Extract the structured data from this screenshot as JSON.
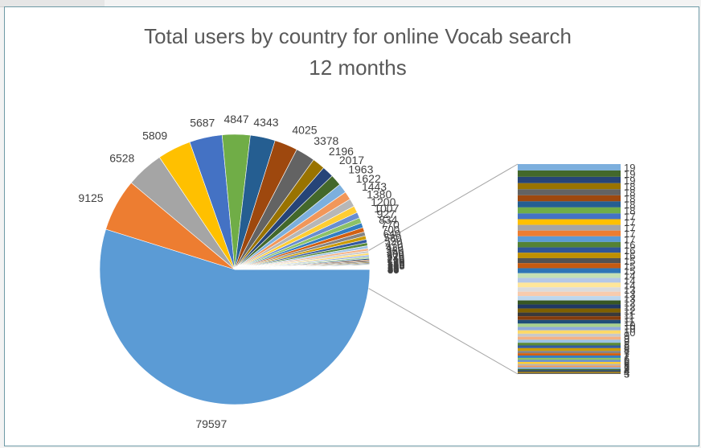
{
  "chart_data": {
    "type": "pie-of-pie",
    "title": "Total users by country for online Vocab search",
    "subtitle": "12 months",
    "values": [
      79597,
      9125,
      6528,
      5809,
      5687,
      4847,
      4343,
      4025,
      3378,
      2196,
      2017,
      1963,
      1622,
      1443,
      1380,
      1200,
      1007,
      927,
      834,
      770,
      700,
      640,
      580,
      520,
      470,
      420,
      380,
      340,
      300,
      270,
      240,
      210,
      190,
      170,
      150,
      135,
      120,
      108,
      96,
      85,
      75,
      66,
      58,
      51,
      45,
      40,
      35,
      30
    ],
    "secondary_values": [
      19,
      19,
      19,
      18,
      18,
      18,
      18,
      18,
      17,
      17,
      17,
      17,
      17,
      16,
      16,
      16,
      15,
      15,
      15,
      14,
      14,
      14,
      13,
      13,
      13,
      12,
      12,
      12,
      11,
      11,
      11,
      10,
      10,
      10,
      9,
      9,
      9,
      8,
      8,
      8,
      7,
      7,
      7,
      6,
      6,
      6,
      5,
      5,
      5,
      4,
      4,
      4,
      3
    ],
    "colors": [
      "#5b9bd5",
      "#ed7d31",
      "#a5a5a5",
      "#ffc000",
      "#4472c4",
      "#70ad47",
      "#255e91",
      "#9e480e",
      "#636363",
      "#997300",
      "#264478",
      "#43682b",
      "#7cafdd",
      "#f1975a",
      "#b7b7b7",
      "#ffcd33",
      "#698ed0",
      "#8cc168",
      "#327dc2",
      "#d26012",
      "#848484",
      "#cc9a00",
      "#335aa1",
      "#5a8a39",
      "#9dc3e6",
      "#f4b183",
      "#c9c9c9",
      "#ffd966",
      "#8faadc",
      "#a9d18e",
      "#1f4e79",
      "#843c0c",
      "#3a3a3a",
      "#7f6000",
      "#203864",
      "#385723",
      "#bdd7ee",
      "#f8cbad",
      "#dbdbdb",
      "#ffe699",
      "#b4c7e7",
      "#c5e0b4",
      "#2e75b6",
      "#c55a11",
      "#525252",
      "#bf9000",
      "#2f5597",
      "#548235"
    ]
  }
}
